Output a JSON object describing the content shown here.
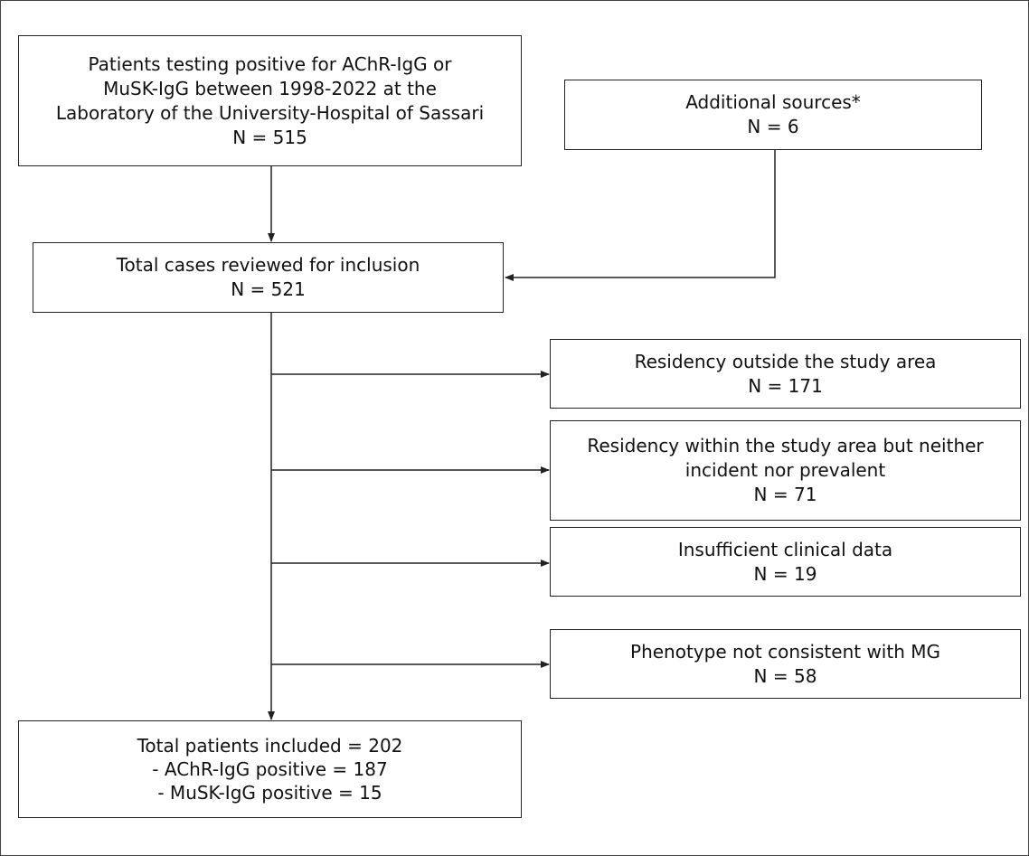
{
  "source": {
    "lines": [
      "Patients testing positive for AChR-IgG or",
      "MuSK-IgG between 1998-2022 at the",
      "Laboratory of the University-Hospital of Sassari",
      "N = 515"
    ]
  },
  "additional": {
    "lines": [
      "Additional sources*",
      "N = 6"
    ]
  },
  "total": {
    "lines": [
      "Total cases reviewed for inclusion",
      "N = 521"
    ]
  },
  "exclusions": [
    {
      "lines": [
        "Residency outside the study area",
        "N = 171"
      ]
    },
    {
      "lines": [
        "Residency within the study area but neither",
        "incident nor prevalent",
        "N = 71"
      ]
    },
    {
      "lines": [
        "Insufficient clinical data",
        "N = 19"
      ]
    },
    {
      "lines": [
        "Phenotype not consistent with MG",
        "N = 58"
      ]
    }
  ],
  "final": {
    "lines": [
      "Total patients included = 202",
      "- AChR-IgG positive = 187",
      "- MuSK-IgG positive = 15"
    ]
  },
  "colors": {
    "line": "#222222",
    "border": "#222222",
    "background": "#ffffff"
  }
}
